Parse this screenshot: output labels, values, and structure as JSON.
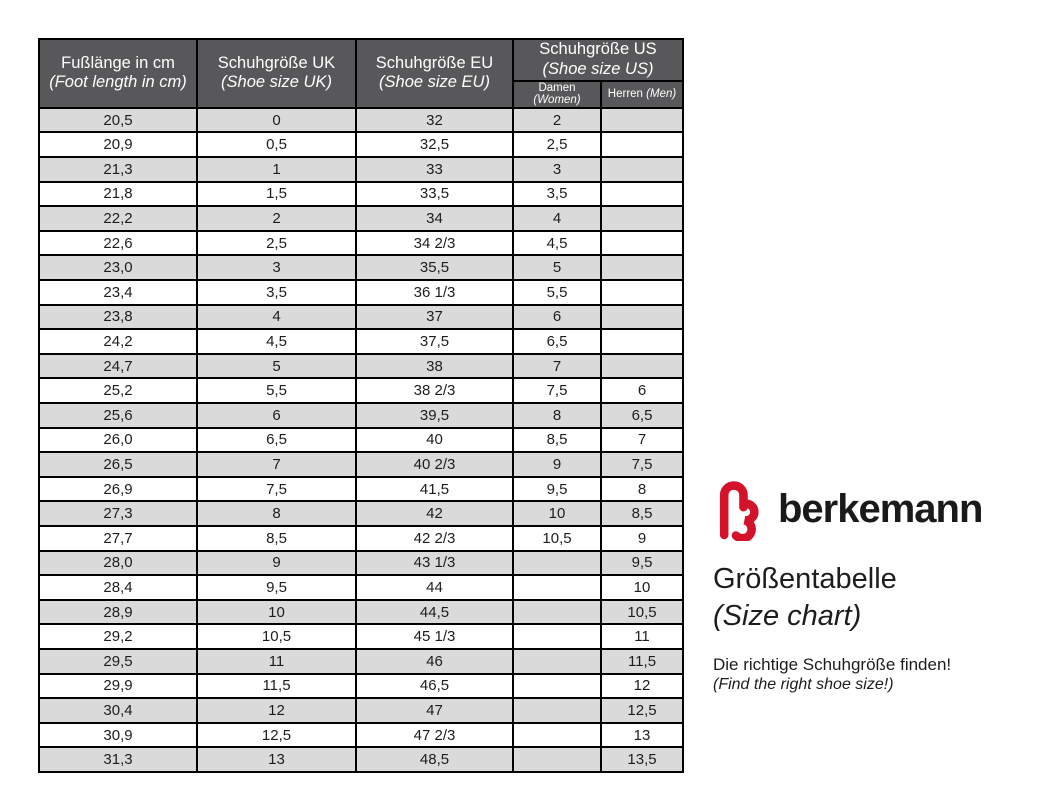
{
  "chart_data": {
    "type": "table",
    "title_de": "Größentabelle",
    "title_en": "(Size chart)",
    "columns": [
      {
        "de": "Fußlänge in cm",
        "en": "(Foot length in cm)"
      },
      {
        "de": "Schuhgröße UK",
        "en": "(Shoe size UK)"
      },
      {
        "de": "Schuhgröße EU",
        "en": "(Shoe size EU)"
      },
      {
        "de": "Schuhgröße US",
        "en": "(Shoe size US)"
      }
    ],
    "us_subcolumns": [
      {
        "de": "Damen",
        "en": "(Women)"
      },
      {
        "de": "Herren",
        "en": "(Men)"
      }
    ],
    "rows": [
      [
        "20,5",
        "0",
        "32",
        "2",
        ""
      ],
      [
        "20,9",
        "0,5",
        "32,5",
        "2,5",
        ""
      ],
      [
        "21,3",
        "1",
        "33",
        "3",
        ""
      ],
      [
        "21,8",
        "1,5",
        "33,5",
        "3,5",
        ""
      ],
      [
        "22,2",
        "2",
        "34",
        "4",
        ""
      ],
      [
        "22,6",
        "2,5",
        "34 2/3",
        "4,5",
        ""
      ],
      [
        "23,0",
        "3",
        "35,5",
        "5",
        ""
      ],
      [
        "23,4",
        "3,5",
        "36 1/3",
        "5,5",
        ""
      ],
      [
        "23,8",
        "4",
        "37",
        "6",
        ""
      ],
      [
        "24,2",
        "4,5",
        "37,5",
        "6,5",
        ""
      ],
      [
        "24,7",
        "5",
        "38",
        "7",
        ""
      ],
      [
        "25,2",
        "5,5",
        "38 2/3",
        "7,5",
        "6"
      ],
      [
        "25,6",
        "6",
        "39,5",
        "8",
        "6,5"
      ],
      [
        "26,0",
        "6,5",
        "40",
        "8,5",
        "7"
      ],
      [
        "26,5",
        "7",
        "40 2/3",
        "9",
        "7,5"
      ],
      [
        "26,9",
        "7,5",
        "41,5",
        "9,5",
        "8"
      ],
      [
        "27,3",
        "8",
        "42",
        "10",
        "8,5"
      ],
      [
        "27,7",
        "8,5",
        "42 2/3",
        "10,5",
        "9"
      ],
      [
        "28,0",
        "9",
        "43 1/3",
        "",
        "9,5"
      ],
      [
        "28,4",
        "9,5",
        "44",
        "",
        "10"
      ],
      [
        "28,9",
        "10",
        "44,5",
        "",
        "10,5"
      ],
      [
        "29,2",
        "10,5",
        "45 1/3",
        "",
        "11"
      ],
      [
        "29,5",
        "11",
        "46",
        "",
        "11,5"
      ],
      [
        "29,9",
        "11,5",
        "46,5",
        "",
        "12"
      ],
      [
        "30,4",
        "12",
        "47",
        "",
        "12,5"
      ],
      [
        "30,9",
        "12,5",
        "47 2/3",
        "",
        "13"
      ],
      [
        "31,3",
        "13",
        "48,5",
        "",
        "13,5"
      ]
    ]
  },
  "brand": {
    "logo_icon": "berkemann-heart-b-logo",
    "logo_color": "#d4132b",
    "wordmark": "berkemann",
    "tagline_de": "Die richtige Schuhgröße finden!",
    "tagline_en": "(Find the right shoe size!)"
  },
  "colors": {
    "header_bg": "#58585a",
    "header_text": "#ffffff",
    "row_alt_bg": "#dadada",
    "row_bg": "#ffffff",
    "border": "#000000",
    "text": "#1d1d1b"
  }
}
